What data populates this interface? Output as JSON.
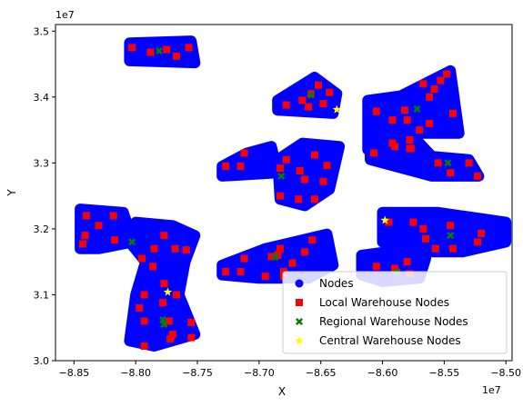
{
  "chart_data": {
    "type": "scatter",
    "xlabel": "X",
    "ylabel": "Y",
    "x_offset_text": "1e7",
    "y_offset_text": "1e7",
    "xlim": [
      -8.865,
      -8.495
    ],
    "ylim": [
      3.0,
      3.51
    ],
    "x_ticks": [
      -8.85,
      -8.8,
      -8.75,
      -8.7,
      -8.65,
      -8.6,
      -8.55,
      -8.5
    ],
    "x_tick_labels": [
      "−8.85",
      "−8.80",
      "−8.75",
      "−8.70",
      "−8.65",
      "−8.60",
      "−8.55",
      "−8.50"
    ],
    "y_ticks": [
      3.0,
      3.1,
      3.2,
      3.3,
      3.4,
      3.5
    ],
    "y_tick_labels": [
      "3.0",
      "3.1",
      "3.2",
      "3.3",
      "3.4",
      "3.5"
    ],
    "grid": false,
    "legend_position": "lower-right",
    "colors": {
      "nodes": "#0000ff",
      "local": "#ff0000",
      "regional": "#008000",
      "central": "#ffff00"
    },
    "node_clusters": [
      {
        "name": "top-left",
        "polygon": [
          [
            -8.805,
            3.482
          ],
          [
            -8.755,
            3.485
          ],
          [
            -8.752,
            3.452
          ],
          [
            -8.805,
            3.455
          ]
        ]
      },
      {
        "name": "top-middle",
        "polygon": [
          [
            -8.685,
            3.395
          ],
          [
            -8.655,
            3.43
          ],
          [
            -8.637,
            3.405
          ],
          [
            -8.64,
            3.375
          ],
          [
            -8.685,
            3.38
          ]
        ]
      },
      {
        "name": "top-right",
        "polygon": [
          [
            -8.612,
            3.395
          ],
          [
            -8.585,
            3.402
          ],
          [
            -8.545,
            3.44
          ],
          [
            -8.538,
            3.345
          ],
          [
            -8.575,
            3.345
          ],
          [
            -8.595,
            3.32
          ],
          [
            -8.612,
            3.32
          ]
        ]
      },
      {
        "name": "middle-left-strip",
        "polygon": [
          [
            -8.73,
            3.295
          ],
          [
            -8.71,
            3.315
          ],
          [
            -8.69,
            3.325
          ],
          [
            -8.685,
            3.285
          ],
          [
            -8.73,
            3.28
          ]
        ]
      },
      {
        "name": "middle-center",
        "polygon": [
          [
            -8.685,
            3.305
          ],
          [
            -8.665,
            3.33
          ],
          [
            -8.635,
            3.325
          ],
          [
            -8.643,
            3.26
          ],
          [
            -8.663,
            3.235
          ],
          [
            -8.683,
            3.245
          ]
        ]
      },
      {
        "name": "middle-right",
        "polygon": [
          [
            -8.61,
            3.32
          ],
          [
            -8.57,
            3.33
          ],
          [
            -8.56,
            3.31
          ],
          [
            -8.53,
            3.305
          ],
          [
            -8.522,
            3.28
          ],
          [
            -8.56,
            3.28
          ],
          [
            -8.61,
            3.305
          ]
        ]
      },
      {
        "name": "left-block",
        "polygon": [
          [
            -8.845,
            3.23
          ],
          [
            -8.81,
            3.225
          ],
          [
            -8.802,
            3.18
          ],
          [
            -8.83,
            3.17
          ],
          [
            -8.845,
            3.17
          ]
        ]
      },
      {
        "name": "left-column",
        "polygon": [
          [
            -8.8,
            3.21
          ],
          [
            -8.77,
            3.205
          ],
          [
            -8.752,
            3.19
          ],
          [
            -8.76,
            3.15
          ],
          [
            -8.765,
            3.1
          ],
          [
            -8.752,
            3.04
          ],
          [
            -8.785,
            3.022
          ],
          [
            -8.805,
            3.03
          ],
          [
            -8.8,
            3.1
          ],
          [
            -8.792,
            3.15
          ],
          [
            -8.805,
            3.18
          ]
        ]
      },
      {
        "name": "lower-center",
        "polygon": [
          [
            -8.73,
            3.145
          ],
          [
            -8.695,
            3.17
          ],
          [
            -8.645,
            3.192
          ],
          [
            -8.64,
            3.145
          ],
          [
            -8.66,
            3.125
          ],
          [
            -8.7,
            3.125
          ],
          [
            -8.73,
            3.13
          ]
        ]
      },
      {
        "name": "lower-right",
        "polygon": [
          [
            -8.6,
            3.225
          ],
          [
            -8.555,
            3.225
          ],
          [
            -8.5,
            3.21
          ],
          [
            -8.5,
            3.18
          ],
          [
            -8.535,
            3.165
          ],
          [
            -8.57,
            3.165
          ],
          [
            -8.6,
            3.18
          ]
        ]
      },
      {
        "name": "bottom-right",
        "polygon": [
          [
            -8.617,
            3.16
          ],
          [
            -8.585,
            3.168
          ],
          [
            -8.565,
            3.155
          ],
          [
            -8.57,
            3.125
          ],
          [
            -8.6,
            3.12
          ],
          [
            -8.617,
            3.13
          ]
        ]
      }
    ],
    "series": [
      {
        "name": "Local Warehouse Nodes",
        "marker": "square",
        "color": "#ff0000",
        "points": [
          [
            -8.803,
            3.475
          ],
          [
            -8.788,
            3.468
          ],
          [
            -8.775,
            3.472
          ],
          [
            -8.767,
            3.462
          ],
          [
            -8.757,
            3.475
          ],
          [
            -8.678,
            3.388
          ],
          [
            -8.665,
            3.395
          ],
          [
            -8.658,
            3.405
          ],
          [
            -8.652,
            3.418
          ],
          [
            -8.643,
            3.407
          ],
          [
            -8.648,
            3.39
          ],
          [
            -8.66,
            3.385
          ],
          [
            -8.605,
            3.378
          ],
          [
            -8.592,
            3.365
          ],
          [
            -8.582,
            3.38
          ],
          [
            -8.567,
            3.42
          ],
          [
            -8.562,
            3.4
          ],
          [
            -8.558,
            3.412
          ],
          [
            -8.553,
            3.425
          ],
          [
            -8.548,
            3.435
          ],
          [
            -8.543,
            3.375
          ],
          [
            -8.562,
            3.36
          ],
          [
            -8.57,
            3.35
          ],
          [
            -8.578,
            3.335
          ],
          [
            -8.577,
            3.322
          ],
          [
            -8.592,
            3.33
          ],
          [
            -8.58,
            3.365
          ],
          [
            -8.727,
            3.295
          ],
          [
            -8.715,
            3.295
          ],
          [
            -8.712,
            3.315
          ],
          [
            -8.683,
            3.292
          ],
          [
            -8.678,
            3.305
          ],
          [
            -8.667,
            3.288
          ],
          [
            -8.663,
            3.275
          ],
          [
            -8.655,
            3.312
          ],
          [
            -8.648,
            3.272
          ],
          [
            -8.645,
            3.296
          ],
          [
            -8.655,
            3.245
          ],
          [
            -8.668,
            3.245
          ],
          [
            -8.683,
            3.25
          ],
          [
            -8.607,
            3.315
          ],
          [
            -8.59,
            3.325
          ],
          [
            -8.578,
            3.322
          ],
          [
            -8.545,
            3.285
          ],
          [
            -8.53,
            3.3
          ],
          [
            -8.523,
            3.28
          ],
          [
            -8.555,
            3.3
          ],
          [
            -8.84,
            3.22
          ],
          [
            -8.83,
            3.205
          ],
          [
            -8.818,
            3.22
          ],
          [
            -8.841,
            3.19
          ],
          [
            -8.843,
            3.177
          ],
          [
            -8.817,
            3.183
          ],
          [
            -8.795,
            3.155
          ],
          [
            -8.785,
            3.17
          ],
          [
            -8.777,
            3.19
          ],
          [
            -8.786,
            3.143
          ],
          [
            -8.768,
            3.17
          ],
          [
            -8.759,
            3.168
          ],
          [
            -8.777,
            3.117
          ],
          [
            -8.767,
            3.1
          ],
          [
            -8.793,
            3.1
          ],
          [
            -8.797,
            3.08
          ],
          [
            -8.778,
            3.088
          ],
          [
            -8.773,
            3.06
          ],
          [
            -8.793,
            3.06
          ],
          [
            -8.77,
            3.04
          ],
          [
            -8.772,
            3.033
          ],
          [
            -8.755,
            3.058
          ],
          [
            -8.755,
            3.035
          ],
          [
            -8.793,
            3.022
          ],
          [
            -8.727,
            3.135
          ],
          [
            -8.715,
            3.135
          ],
          [
            -8.712,
            3.155
          ],
          [
            -8.69,
            3.158
          ],
          [
            -8.683,
            3.17
          ],
          [
            -8.68,
            3.135
          ],
          [
            -8.685,
            3.16
          ],
          [
            -8.673,
            3.148
          ],
          [
            -8.663,
            3.165
          ],
          [
            -8.657,
            3.183
          ],
          [
            -8.695,
            3.128
          ],
          [
            -8.68,
            3.128
          ],
          [
            -8.595,
            3.21
          ],
          [
            -8.575,
            3.21
          ],
          [
            -8.567,
            3.2
          ],
          [
            -8.565,
            3.185
          ],
          [
            -8.557,
            3.17
          ],
          [
            -8.545,
            3.205
          ],
          [
            -8.543,
            3.17
          ],
          [
            -8.52,
            3.193
          ],
          [
            -8.523,
            3.18
          ],
          [
            -8.605,
            3.143
          ],
          [
            -8.59,
            3.14
          ],
          [
            -8.58,
            3.15
          ],
          [
            -8.578,
            3.132
          ]
        ]
      },
      {
        "name": "Regional Warehouse Nodes",
        "marker": "x",
        "color": "#008000",
        "points": [
          [
            -8.781,
            3.47
          ],
          [
            -8.658,
            3.403
          ],
          [
            -8.572,
            3.382
          ],
          [
            -8.682,
            3.28
          ],
          [
            -8.547,
            3.3
          ],
          [
            -8.803,
            3.18
          ],
          [
            -8.778,
            3.062
          ],
          [
            -8.777,
            3.055
          ],
          [
            -8.687,
            3.157
          ],
          [
            -8.545,
            3.19
          ],
          [
            -8.588,
            3.135
          ]
        ]
      },
      {
        "name": "Central Warehouse Nodes",
        "marker": "star",
        "color": "#ffff00",
        "points": [
          [
            -8.637,
            3.381
          ],
          [
            -8.598,
            3.213
          ],
          [
            -8.774,
            3.104
          ]
        ]
      }
    ],
    "legend": [
      {
        "label": "Nodes",
        "marker": "circle",
        "color": "#0000ff"
      },
      {
        "label": "Local Warehouse Nodes",
        "marker": "square",
        "color": "#ff0000"
      },
      {
        "label": "Regional Warehouse Nodes",
        "marker": "x",
        "color": "#008000"
      },
      {
        "label": "Central Warehouse Nodes",
        "marker": "star",
        "color": "#ffff00"
      }
    ]
  }
}
